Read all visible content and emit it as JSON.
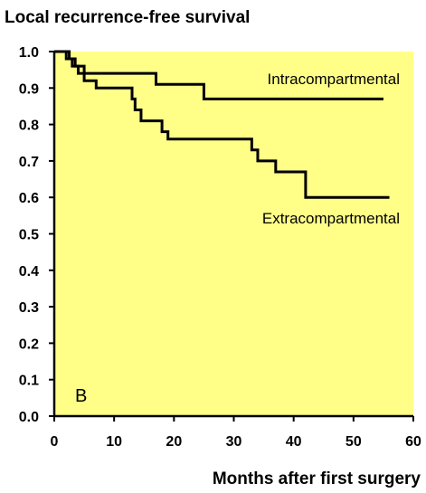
{
  "chart_data": {
    "type": "line",
    "title": "Local recurrence-free survival",
    "xlabel": "Months after first surgery",
    "ylabel": "",
    "panel_label": "B",
    "xlim": [
      0,
      60
    ],
    "ylim": [
      0.0,
      1.0
    ],
    "xticks": [
      "0",
      "10",
      "20",
      "30",
      "40",
      "50",
      "60"
    ],
    "yticks": [
      "0.0",
      "0.1",
      "0.2",
      "0.3",
      "0.4",
      "0.5",
      "0.6",
      "0.7",
      "0.8",
      "0.9",
      "1.0"
    ],
    "grid": false,
    "plot_background": "#ffff88",
    "line_color": "#000000",
    "series": [
      {
        "name": "Intracompartmental",
        "step": true,
        "x": [
          0,
          2.5,
          3.5,
          5,
          17,
          25,
          55
        ],
        "y": [
          1.0,
          0.98,
          0.96,
          0.94,
          0.91,
          0.87,
          0.87
        ]
      },
      {
        "name": "Extracompartmental",
        "step": true,
        "x": [
          0,
          2,
          3,
          4,
          5,
          7,
          13,
          13.5,
          14.5,
          18,
          19,
          33,
          34,
          37,
          42,
          56
        ],
        "y": [
          1.0,
          0.98,
          0.96,
          0.94,
          0.92,
          0.9,
          0.87,
          0.84,
          0.81,
          0.78,
          0.76,
          0.73,
          0.7,
          0.67,
          0.6,
          0.6
        ]
      }
    ]
  }
}
